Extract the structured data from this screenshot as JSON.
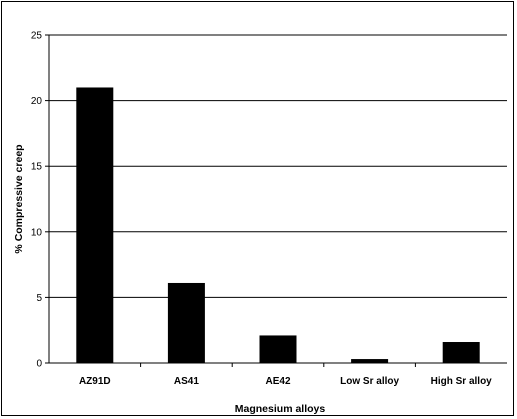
{
  "chart_data": {
    "type": "bar",
    "categories": [
      "AZ91D",
      "AS41",
      "AE42",
      "Low Sr alloy",
      "High Sr alloy"
    ],
    "values": [
      21,
      6.1,
      2.1,
      0.3,
      1.6
    ],
    "xlabel": "Magnesium alloys",
    "ylabel": "% Compressive creep",
    "ylim": [
      0,
      25
    ],
    "yticks": [
      "0",
      "5",
      "10",
      "15",
      "20",
      "25"
    ],
    "grid": true,
    "legend": "none",
    "colors": {
      "bar": "#000000",
      "grid": "#000000",
      "background": "#ffffff"
    }
  }
}
